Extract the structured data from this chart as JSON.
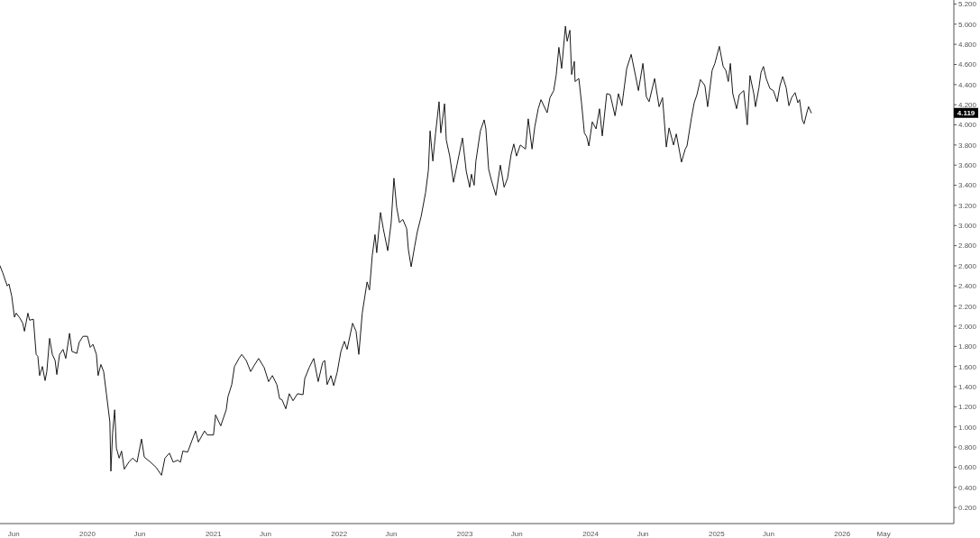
{
  "chart_data": {
    "type": "line",
    "color": "#1a1a1a",
    "x": [
      "2019-04-22",
      "2019-04-30",
      "2019-05-13",
      "2019-05-18",
      "2019-05-26",
      "2019-06-03",
      "2019-06-08",
      "2019-06-19",
      "2019-06-27",
      "2019-07-02",
      "2019-07-12",
      "2019-07-17",
      "2019-07-28",
      "2019-08-05",
      "2019-08-10",
      "2019-08-15",
      "2019-08-23",
      "2019-08-31",
      "2019-09-05",
      "2019-09-13",
      "2019-09-21",
      "2019-09-29",
      "2019-10-04",
      "2019-10-12",
      "2019-10-22",
      "2019-10-30",
      "2019-11-10",
      "2019-11-17",
      "2019-12-01",
      "2019-12-08",
      "2019-12-19",
      "2020-01-01",
      "2020-01-09",
      "2020-01-17",
      "2020-01-27",
      "2020-02-01",
      "2020-02-09",
      "2020-02-17",
      "2020-02-25",
      "2020-03-06",
      "2020-03-09",
      "2020-03-14",
      "2020-03-20",
      "2020-03-25",
      "2020-04-02",
      "2020-04-09",
      "2020-04-17",
      "2020-04-30",
      "2020-05-11",
      "2020-05-24",
      "2020-06-06",
      "2020-06-14",
      "2020-07-02",
      "2020-07-18",
      "2020-08-03",
      "2020-08-13",
      "2020-08-26",
      "2020-09-06",
      "2020-09-19",
      "2020-09-27",
      "2020-10-04",
      "2020-10-18",
      "2020-10-31",
      "2020-11-10",
      "2020-11-18",
      "2020-12-06",
      "2020-12-14",
      "2021-01-01",
      "2021-01-07",
      "2021-01-22",
      "2021-02-07",
      "2021-02-12",
      "2021-02-23",
      "2021-03-03",
      "2021-03-16",
      "2021-03-24",
      "2021-04-06",
      "2021-04-19",
      "2021-04-29",
      "2021-05-12",
      "2021-05-28",
      "2021-06-10",
      "2021-06-21",
      "2021-07-04",
      "2021-07-12",
      "2021-07-19",
      "2021-07-30",
      "2021-08-09",
      "2021-08-20",
      "2021-09-02",
      "2021-09-18",
      "2021-09-23",
      "2021-10-06",
      "2021-10-19",
      "2021-11-01",
      "2021-11-14",
      "2021-11-20",
      "2021-11-27",
      "2021-12-08",
      "2021-12-16",
      "2021-12-26",
      "2022-01-06",
      "2022-01-16",
      "2022-01-24",
      "2022-02-09",
      "2022-02-19",
      "2022-02-27",
      "2022-03-09",
      "2022-03-23",
      "2022-03-30",
      "2022-04-07",
      "2022-04-15",
      "2022-04-20",
      "2022-05-01",
      "2022-05-09",
      "2022-05-22",
      "2022-06-01",
      "2022-06-09",
      "2022-06-17",
      "2022-06-25",
      "2022-07-05",
      "2022-07-16",
      "2022-07-21",
      "2022-07-29",
      "2022-08-08",
      "2022-08-16",
      "2022-08-27",
      "2022-09-09",
      "2022-09-17",
      "2022-09-22",
      "2022-09-30",
      "2022-10-08",
      "2022-10-18",
      "2022-10-23",
      "2022-11-03",
      "2022-11-08",
      "2022-11-18",
      "2022-11-29",
      "2022-12-09",
      "2022-12-25",
      "2023-01-05",
      "2023-01-15",
      "2023-01-20",
      "2023-01-28",
      "2023-02-02",
      "2023-02-15",
      "2023-02-26",
      "2023-03-03",
      "2023-03-11",
      "2023-03-19",
      "2023-04-01",
      "2023-04-14",
      "2023-04-25",
      "2023-05-05",
      "2023-05-15",
      "2023-05-23",
      "2023-05-31",
      "2023-06-11",
      "2023-06-26",
      "2023-07-04",
      "2023-07-15",
      "2023-07-23",
      "2023-08-02",
      "2023-08-10",
      "2023-08-28",
      "2023-09-05",
      "2023-09-16",
      "2023-09-23",
      "2023-10-01",
      "2023-10-09",
      "2023-10-20",
      "2023-10-25",
      "2023-11-02",
      "2023-11-07",
      "2023-11-15",
      "2023-11-17",
      "2023-11-28",
      "2023-12-06",
      "2023-12-14",
      "2023-12-21",
      "2023-12-27",
      "2024-01-06",
      "2024-01-17",
      "2024-01-27",
      "2024-02-04",
      "2024-02-17",
      "2024-02-27",
      "2024-03-12",
      "2024-03-22",
      "2024-04-01",
      "2024-04-15",
      "2024-04-28",
      "2024-05-11",
      "2024-05-19",
      "2024-06-01",
      "2024-06-11",
      "2024-06-19",
      "2024-07-05",
      "2024-07-18",
      "2024-07-28",
      "2024-08-08",
      "2024-08-16",
      "2024-08-29",
      "2024-09-06",
      "2024-09-21",
      "2024-10-02",
      "2024-10-07",
      "2024-10-20",
      "2024-10-28",
      "2024-11-05",
      "2024-11-15",
      "2024-11-28",
      "2024-12-06",
      "2024-12-19",
      "2024-12-27",
      "2025-01-09",
      "2025-01-20",
      "2025-01-28",
      "2025-02-04",
      "2025-02-10",
      "2025-02-17",
      "2025-02-28",
      "2025-03-08",
      "2025-03-21",
      "2025-03-31",
      "2025-04-08",
      "2025-04-19",
      "2025-04-24",
      "2025-05-04",
      "2025-05-10",
      "2025-05-17",
      "2025-05-25",
      "2025-06-05",
      "2025-06-15",
      "2025-06-26",
      "2025-07-04",
      "2025-07-12",
      "2025-07-22",
      "2025-07-30",
      "2025-08-07",
      "2025-08-17",
      "2025-08-25",
      "2025-08-30",
      "2025-09-07",
      "2025-09-12",
      "2025-09-20",
      "2025-09-25",
      "2025-10-03"
    ],
    "values": [
      2.6,
      2.53,
      2.4,
      2.42,
      2.3,
      2.09,
      2.13,
      2.08,
      2.03,
      1.95,
      2.13,
      2.06,
      2.07,
      1.72,
      1.7,
      1.51,
      1.6,
      1.46,
      1.55,
      1.88,
      1.72,
      1.66,
      1.52,
      1.72,
      1.77,
      1.68,
      1.93,
      1.75,
      1.73,
      1.84,
      1.9,
      1.9,
      1.79,
      1.82,
      1.72,
      1.51,
      1.62,
      1.55,
      1.33,
      1.05,
      0.56,
      0.94,
      1.17,
      0.79,
      0.69,
      0.76,
      0.58,
      0.65,
      0.69,
      0.65,
      0.88,
      0.7,
      0.65,
      0.6,
      0.52,
      0.69,
      0.74,
      0.65,
      0.67,
      0.65,
      0.76,
      0.75,
      0.87,
      0.96,
      0.85,
      0.96,
      0.92,
      0.92,
      1.12,
      1.01,
      1.17,
      1.3,
      1.42,
      1.6,
      1.68,
      1.72,
      1.66,
      1.55,
      1.61,
      1.68,
      1.59,
      1.45,
      1.51,
      1.42,
      1.28,
      1.27,
      1.18,
      1.33,
      1.26,
      1.33,
      1.32,
      1.48,
      1.59,
      1.68,
      1.45,
      1.64,
      1.66,
      1.42,
      1.51,
      1.41,
      1.54,
      1.75,
      1.85,
      1.77,
      2.03,
      1.95,
      1.72,
      2.13,
      2.44,
      2.36,
      2.7,
      2.91,
      2.73,
      3.13,
      2.97,
      2.75,
      3.03,
      3.47,
      3.18,
      3.03,
      3.06,
      2.97,
      2.76,
      2.59,
      2.79,
      2.94,
      3.09,
      3.33,
      3.55,
      3.94,
      3.64,
      3.92,
      4.23,
      3.92,
      4.21,
      3.85,
      3.69,
      3.43,
      3.6,
      3.87,
      3.54,
      3.38,
      3.51,
      3.4,
      3.64,
      3.94,
      4.05,
      3.96,
      3.56,
      3.45,
      3.3,
      3.6,
      3.38,
      3.47,
      3.7,
      3.81,
      3.69,
      3.8,
      3.76,
      4.06,
      3.76,
      3.98,
      4.16,
      4.25,
      4.12,
      4.27,
      4.34,
      4.49,
      4.77,
      4.56,
      4.98,
      4.83,
      4.94,
      4.5,
      4.63,
      4.43,
      4.46,
      4.21,
      3.92,
      3.88,
      3.79,
      4.03,
      3.96,
      4.16,
      3.89,
      4.31,
      4.3,
      4.09,
      4.31,
      4.19,
      4.56,
      4.7,
      4.48,
      4.34,
      4.61,
      4.28,
      4.23,
      4.46,
      4.18,
      4.27,
      3.78,
      3.97,
      3.8,
      3.91,
      3.63,
      3.76,
      3.79,
      4.07,
      4.22,
      4.3,
      4.45,
      4.39,
      4.18,
      4.54,
      4.61,
      4.78,
      4.58,
      4.54,
      4.43,
      4.61,
      4.31,
      4.16,
      4.3,
      4.34,
      4.0,
      4.49,
      4.31,
      4.18,
      4.37,
      4.52,
      4.58,
      4.46,
      4.36,
      4.34,
      4.23,
      4.39,
      4.48,
      4.37,
      4.19,
      4.27,
      4.32,
      4.22,
      4.25,
      4.05,
      4.01,
      4.12,
      4.18,
      4.119
    ],
    "xlim": [
      "2019-04-22",
      "2026-11-21"
    ],
    "xticks": [
      {
        "value": "2019-06-01",
        "label": "Jun"
      },
      {
        "value": "2020-01-01",
        "label": "2020"
      },
      {
        "value": "2020-06-01",
        "label": "Jun"
      },
      {
        "value": "2021-01-01",
        "label": "2021"
      },
      {
        "value": "2021-06-01",
        "label": "Jun"
      },
      {
        "value": "2022-01-01",
        "label": "2022"
      },
      {
        "value": "2022-06-01",
        "label": "Jun"
      },
      {
        "value": "2023-01-01",
        "label": "2023"
      },
      {
        "value": "2023-06-01",
        "label": "Jun"
      },
      {
        "value": "2024-01-01",
        "label": "2024"
      },
      {
        "value": "2024-06-01",
        "label": "Jun"
      },
      {
        "value": "2025-01-01",
        "label": "2025"
      },
      {
        "value": "2025-06-01",
        "label": "Jun"
      },
      {
        "value": "2026-01-01",
        "label": "2026"
      },
      {
        "value": "2026-05-01",
        "label": "May"
      }
    ],
    "ylim": [
      0.04,
      5.24
    ],
    "yticks": [
      {
        "value": 0.2,
        "label": "0.200"
      },
      {
        "value": 0.4,
        "label": "0.400"
      },
      {
        "value": 0.6,
        "label": "0.600"
      },
      {
        "value": 0.8,
        "label": "0.800"
      },
      {
        "value": 1.0,
        "label": "1.000"
      },
      {
        "value": 1.2,
        "label": "1.200"
      },
      {
        "value": 1.4,
        "label": "1.400"
      },
      {
        "value": 1.6,
        "label": "1.600"
      },
      {
        "value": 1.8,
        "label": "1.800"
      },
      {
        "value": 2.0,
        "label": "2.000"
      },
      {
        "value": 2.2,
        "label": "2.200"
      },
      {
        "value": 2.4,
        "label": "2.400"
      },
      {
        "value": 2.6,
        "label": "2.600"
      },
      {
        "value": 2.8,
        "label": "2.800"
      },
      {
        "value": 3.0,
        "label": "3.000"
      },
      {
        "value": 3.2,
        "label": "3.200"
      },
      {
        "value": 3.4,
        "label": "3.400"
      },
      {
        "value": 3.6,
        "label": "3.600"
      },
      {
        "value": 3.8,
        "label": "3.800"
      },
      {
        "value": 4.0,
        "label": "4.000"
      },
      {
        "value": 4.2,
        "label": "4.200"
      },
      {
        "value": 4.4,
        "label": "4.400"
      },
      {
        "value": 4.6,
        "label": "4.600"
      },
      {
        "value": 4.8,
        "label": "4.800"
      },
      {
        "value": 5.0,
        "label": "5.000"
      },
      {
        "value": 5.2,
        "label": "5.200"
      }
    ],
    "annotations": [
      {
        "text": "4.119",
        "y": 4.119
      }
    ]
  }
}
